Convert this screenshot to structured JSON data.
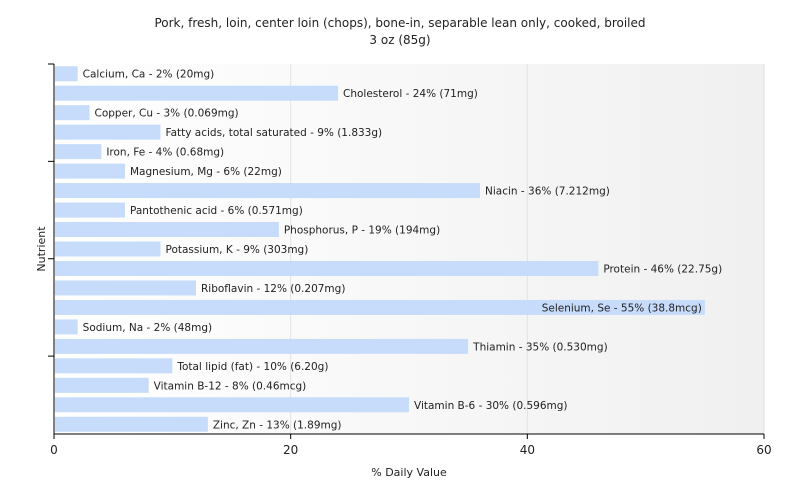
{
  "chart_data": {
    "type": "bar",
    "orientation": "horizontal",
    "title": "Pork, fresh, loin, center loin (chops), bone-in, separable lean only, cooked, broiled",
    "subtitle": "3 oz (85g)",
    "xlabel": "% Daily Value",
    "ylabel": "Nutrient",
    "xlim": [
      0,
      60
    ],
    "xticks": [
      0,
      20,
      40,
      60
    ],
    "grid": true,
    "bar_color": "#c6dcfa",
    "categories": [
      "Calcium, Ca",
      "Cholesterol",
      "Copper, Cu",
      "Fatty acids, total saturated",
      "Iron, Fe",
      "Magnesium, Mg",
      "Niacin",
      "Pantothenic acid",
      "Phosphorus, P",
      "Potassium, K",
      "Protein",
      "Riboflavin",
      "Selenium, Se",
      "Sodium, Na",
      "Thiamin",
      "Total lipid (fat)",
      "Vitamin B-12",
      "Vitamin B-6",
      "Zinc, Zn"
    ],
    "values": [
      2,
      24,
      3,
      9,
      4,
      6,
      36,
      6,
      19,
      9,
      46,
      12,
      55,
      2,
      35,
      10,
      8,
      30,
      13
    ],
    "labels": [
      "Calcium, Ca - 2% (20mg)",
      "Cholesterol - 24% (71mg)",
      "Copper, Cu - 3% (0.069mg)",
      "Fatty acids, total saturated - 9% (1.833g)",
      "Iron, Fe - 4% (0.68mg)",
      "Magnesium, Mg - 6% (22mg)",
      "Niacin - 36% (7.212mg)",
      "Pantothenic acid - 6% (0.571mg)",
      "Phosphorus, P - 19% (194mg)",
      "Potassium, K - 9% (303mg)",
      "Protein - 46% (22.75g)",
      "Riboflavin - 12% (0.207mg)",
      "Selenium, Se - 55% (38.8mcg)",
      "Sodium, Na - 2% (48mg)",
      "Thiamin - 35% (0.530mg)",
      "Total lipid (fat) - 10% (6.20g)",
      "Vitamin B-12 - 8% (0.46mcg)",
      "Vitamin B-6 - 30% (0.596mg)",
      "Zinc, Zn - 13% (1.89mg)"
    ]
  }
}
